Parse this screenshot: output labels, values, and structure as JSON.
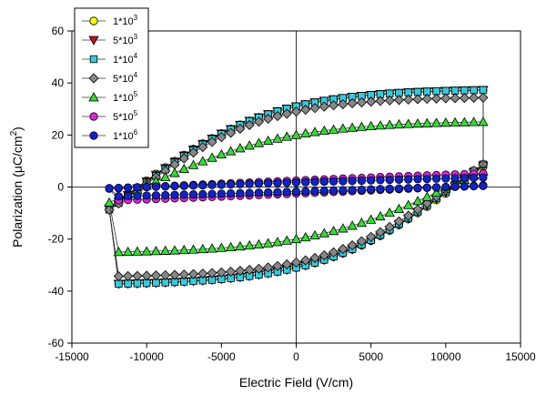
{
  "chart_data": {
    "type": "line",
    "title": "",
    "xlabel": "Electric Field (V/cm)",
    "ylabel_parts": {
      "main": "Polarization (",
      "mu": "μ",
      "unit": "C/cm",
      "sup": "2",
      "close": ")"
    },
    "xlim": [
      -15000,
      15000
    ],
    "ylim": [
      -60,
      60
    ],
    "xticks": [
      -15000,
      -10000,
      -5000,
      0,
      5000,
      10000,
      15000
    ],
    "yticks": [
      -60,
      -40,
      -20,
      0,
      20,
      40,
      60
    ],
    "grid": false,
    "zero_lines": true,
    "legend_position": "top-left",
    "series": [
      {
        "name": "1*10^3",
        "label_base": "1*10",
        "label_exp": "3",
        "marker": "circle",
        "color": "#ffff00",
        "Pmax": 37,
        "Pr": 31,
        "Ec": 10600,
        "Emax": 12500
      },
      {
        "name": "5*10^3",
        "label_base": "5*10",
        "label_exp": "3",
        "marker": "triangle-down",
        "color": "#c0121a",
        "Pmax": 37,
        "Pr": 31,
        "Ec": 10500,
        "Emax": 12500
      },
      {
        "name": "1*10^4",
        "label_base": "1*10",
        "label_exp": "4",
        "marker": "square",
        "color": "#33ccdd",
        "Pmax": 37,
        "Pr": 31,
        "Ec": 10400,
        "Emax": 12500
      },
      {
        "name": "5*10^4",
        "label_base": "5*10",
        "label_exp": "4",
        "marker": "diamond",
        "color": "#888888",
        "Pmax": 34,
        "Pr": 29,
        "Ec": 10300,
        "Emax": 12500
      },
      {
        "name": "1*10^5",
        "label_base": "1*10",
        "label_exp": "5",
        "marker": "triangle-up",
        "color": "#33dd33",
        "Pmax": 25,
        "Pr": 20,
        "Ec": 10200,
        "Emax": 12500
      },
      {
        "name": "5*10^5",
        "label_base": "5*10",
        "label_exp": "5",
        "marker": "circle",
        "color": "#dd22dd",
        "Pmax": 10,
        "Pr": 1,
        "Ec": 10000,
        "Emax": 12500
      },
      {
        "name": "1*10^6",
        "label_base": "1*10",
        "label_exp": "6",
        "marker": "circle",
        "color": "#1122cc",
        "Pmax": 7,
        "Pr": -1,
        "Ec": 10000,
        "Emax": 12500
      }
    ]
  }
}
